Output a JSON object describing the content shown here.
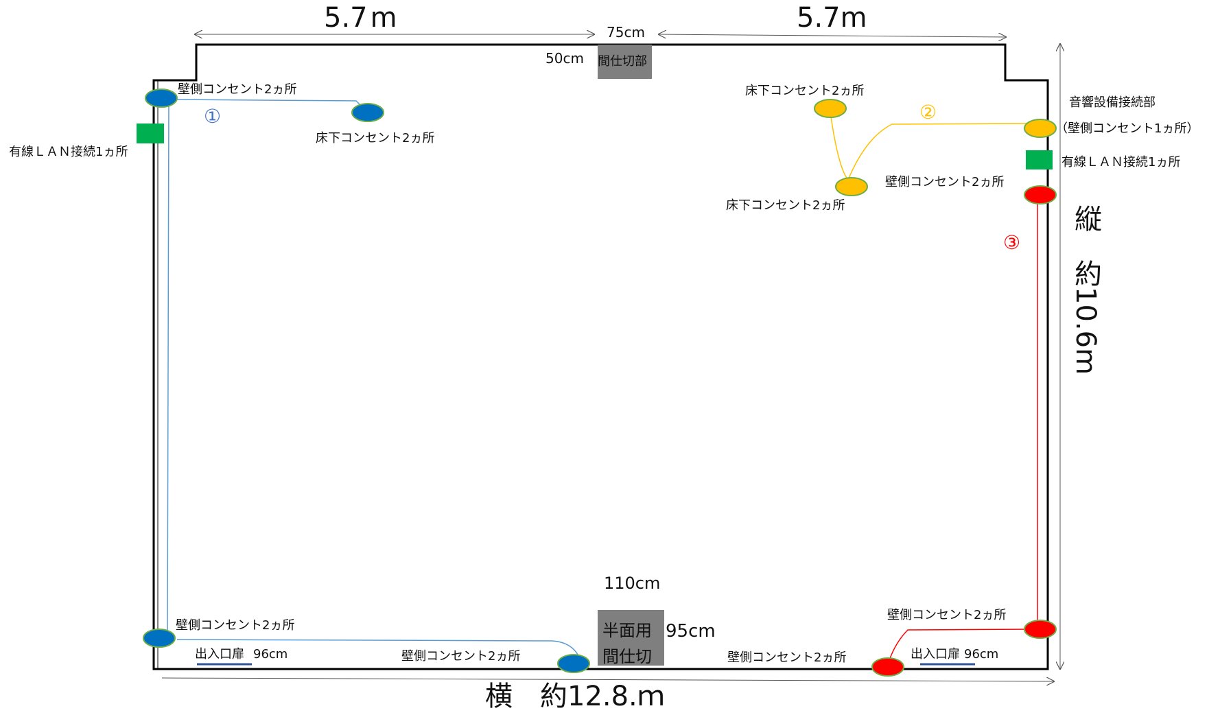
{
  "dimensions": {
    "top_left": "5.7 m",
    "top_right": "5.7m",
    "top_gap": "75cm",
    "top_partition_depth": "50cm",
    "bottom_partition_width": "110cm",
    "bottom_partition_depth": "95cm",
    "width_total": "横　約12.8.ｍ",
    "height_total": "縦　約10.6m"
  },
  "partitions": {
    "top": "間仕切部",
    "bottom_line1": "半面用",
    "bottom_line2": "間仕切"
  },
  "circuits": {
    "c1": {
      "number": "①",
      "color": "#4472c4",
      "line_color": "#5b9bd5",
      "outlet_color": "#0070c0"
    },
    "c2": {
      "number": "②",
      "color": "#ffc000",
      "line_color": "#ffc000",
      "outlet_color": "#ffc000"
    },
    "c3": {
      "number": "③",
      "color": "#ff0000",
      "line_color": "#ff0000",
      "outlet_color": "#ff0000"
    }
  },
  "labels": {
    "wall_tl": "壁側コンセント2ヵ所",
    "floor_c1": "床下コンセント2ヵ所",
    "lan_left": "有線ＬＡＮ接続1ヵ所",
    "floor_c2_top": "床下コンセント2ヵ所",
    "audio_title": "音響設備接続部",
    "audio_sub": "（壁側コンセント1ヵ所）",
    "lan_right": "有線ＬＡＮ接続1ヵ所",
    "wall_r_top": "壁側コンセント2ヵ所",
    "floor_c2_bottom": "床下コンセント2ヵ所",
    "wall_bl": "壁側コンセント2ヵ所",
    "door_left": "出入口扉",
    "door_left_size": "96cm",
    "wall_bottom_mid": "壁側コンセント2ヵ所",
    "wall_r_bottom": "壁側コンセント2ヵ所",
    "wall_bottom_right": "壁側コンセント2ヵ所",
    "door_right": "出入口扉",
    "door_right_size": "96cm"
  },
  "colors": {
    "lan": "#00b050",
    "partition": "#7f7f7f",
    "door_line": "#2f5597",
    "outlet_stroke": "#70ad47"
  }
}
